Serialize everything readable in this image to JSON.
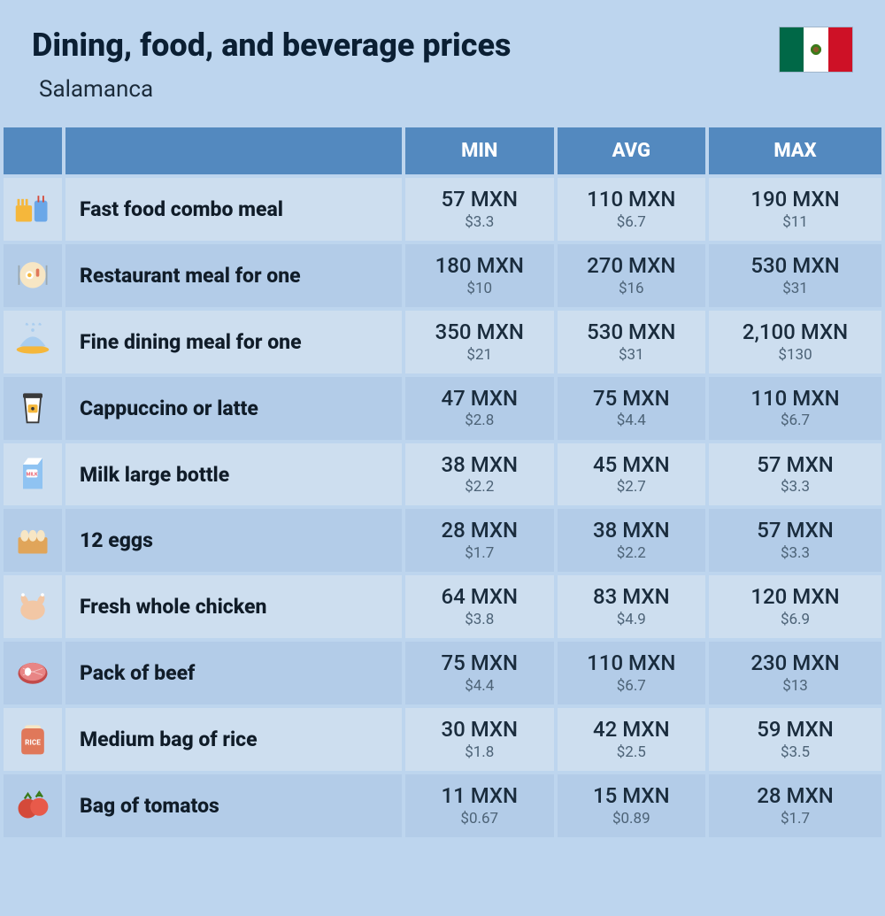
{
  "header": {
    "title": "Dining, food, and beverage prices",
    "subtitle": "Salamanca",
    "flag": {
      "stripe_colors": [
        "#006847",
        "#ffffff",
        "#ce1126"
      ]
    }
  },
  "table": {
    "columns": {
      "icon": "",
      "name": "",
      "min": "MIN",
      "avg": "AVG",
      "max": "MAX"
    },
    "header_bg": "#5389bf",
    "header_text_color": "#ffffff",
    "row_bg_odd": "#cddeef",
    "row_bg_even": "#b3cce8",
    "mxn_color": "#1a2c3d",
    "usd_color": "#4d6377",
    "rows": [
      {
        "icon": "fast-food-icon",
        "name": "Fast food combo meal",
        "min_mxn": "57 MXN",
        "min_usd": "$3.3",
        "avg_mxn": "110 MXN",
        "avg_usd": "$6.7",
        "max_mxn": "190 MXN",
        "max_usd": "$11"
      },
      {
        "icon": "restaurant-icon",
        "name": "Restaurant meal for one",
        "min_mxn": "180 MXN",
        "min_usd": "$10",
        "avg_mxn": "270 MXN",
        "avg_usd": "$16",
        "max_mxn": "530 MXN",
        "max_usd": "$31"
      },
      {
        "icon": "fine-dining-icon",
        "name": "Fine dining meal for one",
        "min_mxn": "350 MXN",
        "min_usd": "$21",
        "avg_mxn": "530 MXN",
        "avg_usd": "$31",
        "max_mxn": "2,100 MXN",
        "max_usd": "$130"
      },
      {
        "icon": "coffee-icon",
        "name": "Cappuccino or latte",
        "min_mxn": "47 MXN",
        "min_usd": "$2.8",
        "avg_mxn": "75 MXN",
        "avg_usd": "$4.4",
        "max_mxn": "110 MXN",
        "max_usd": "$6.7"
      },
      {
        "icon": "milk-icon",
        "name": "Milk large bottle",
        "min_mxn": "38 MXN",
        "min_usd": "$2.2",
        "avg_mxn": "45 MXN",
        "avg_usd": "$2.7",
        "max_mxn": "57 MXN",
        "max_usd": "$3.3"
      },
      {
        "icon": "eggs-icon",
        "name": "12 eggs",
        "min_mxn": "28 MXN",
        "min_usd": "$1.7",
        "avg_mxn": "38 MXN",
        "avg_usd": "$2.2",
        "max_mxn": "57 MXN",
        "max_usd": "$3.3"
      },
      {
        "icon": "chicken-icon",
        "name": "Fresh whole chicken",
        "min_mxn": "64 MXN",
        "min_usd": "$3.8",
        "avg_mxn": "83 MXN",
        "avg_usd": "$4.9",
        "max_mxn": "120 MXN",
        "max_usd": "$6.9"
      },
      {
        "icon": "beef-icon",
        "name": "Pack of beef",
        "min_mxn": "75 MXN",
        "min_usd": "$4.4",
        "avg_mxn": "110 MXN",
        "avg_usd": "$6.7",
        "max_mxn": "230 MXN",
        "max_usd": "$13"
      },
      {
        "icon": "rice-icon",
        "name": "Medium bag of rice",
        "min_mxn": "30 MXN",
        "min_usd": "$1.8",
        "avg_mxn": "42 MXN",
        "avg_usd": "$2.5",
        "max_mxn": "59 MXN",
        "max_usd": "$3.5"
      },
      {
        "icon": "tomato-icon",
        "name": "Bag of tomatos",
        "min_mxn": "11 MXN",
        "min_usd": "$0.67",
        "avg_mxn": "15 MXN",
        "avg_usd": "$0.89",
        "max_mxn": "28 MXN",
        "max_usd": "$1.7"
      }
    ]
  },
  "icons": {
    "fast-food-icon": {
      "primary": "#f5b73b",
      "secondary": "#6aa7e8",
      "accent": "#d44a3a"
    },
    "restaurant-icon": {
      "primary": "#f5b73b",
      "secondary": "#f7e6c4",
      "accent": "#e0785a"
    },
    "fine-dining-icon": {
      "primary": "#f5b73b",
      "secondary": "#a9cdef",
      "accent": "#a9cdef"
    },
    "coffee-icon": {
      "primary": "#3a3a3a",
      "secondary": "#ffffff",
      "accent": "#f5b73b"
    },
    "milk-icon": {
      "primary": "#8fc3f2",
      "secondary": "#ffffff",
      "accent": "#e85a6a"
    },
    "eggs-icon": {
      "primary": "#e0a55a",
      "secondary": "#f7e6c4",
      "accent": "#e0a55a"
    },
    "chicken-icon": {
      "primary": "#f2c7a5",
      "secondary": "#f2c7a5",
      "accent": "#e0a55a"
    },
    "beef-icon": {
      "primary": "#c24a4a",
      "secondary": "#e88585",
      "accent": "#ffffff"
    },
    "rice-icon": {
      "primary": "#e0785a",
      "secondary": "#f7e6c4",
      "accent": "#ffffff"
    },
    "tomato-icon": {
      "primary": "#d44a3a",
      "secondary": "#e85a4a",
      "accent": "#3b7a1a"
    }
  }
}
